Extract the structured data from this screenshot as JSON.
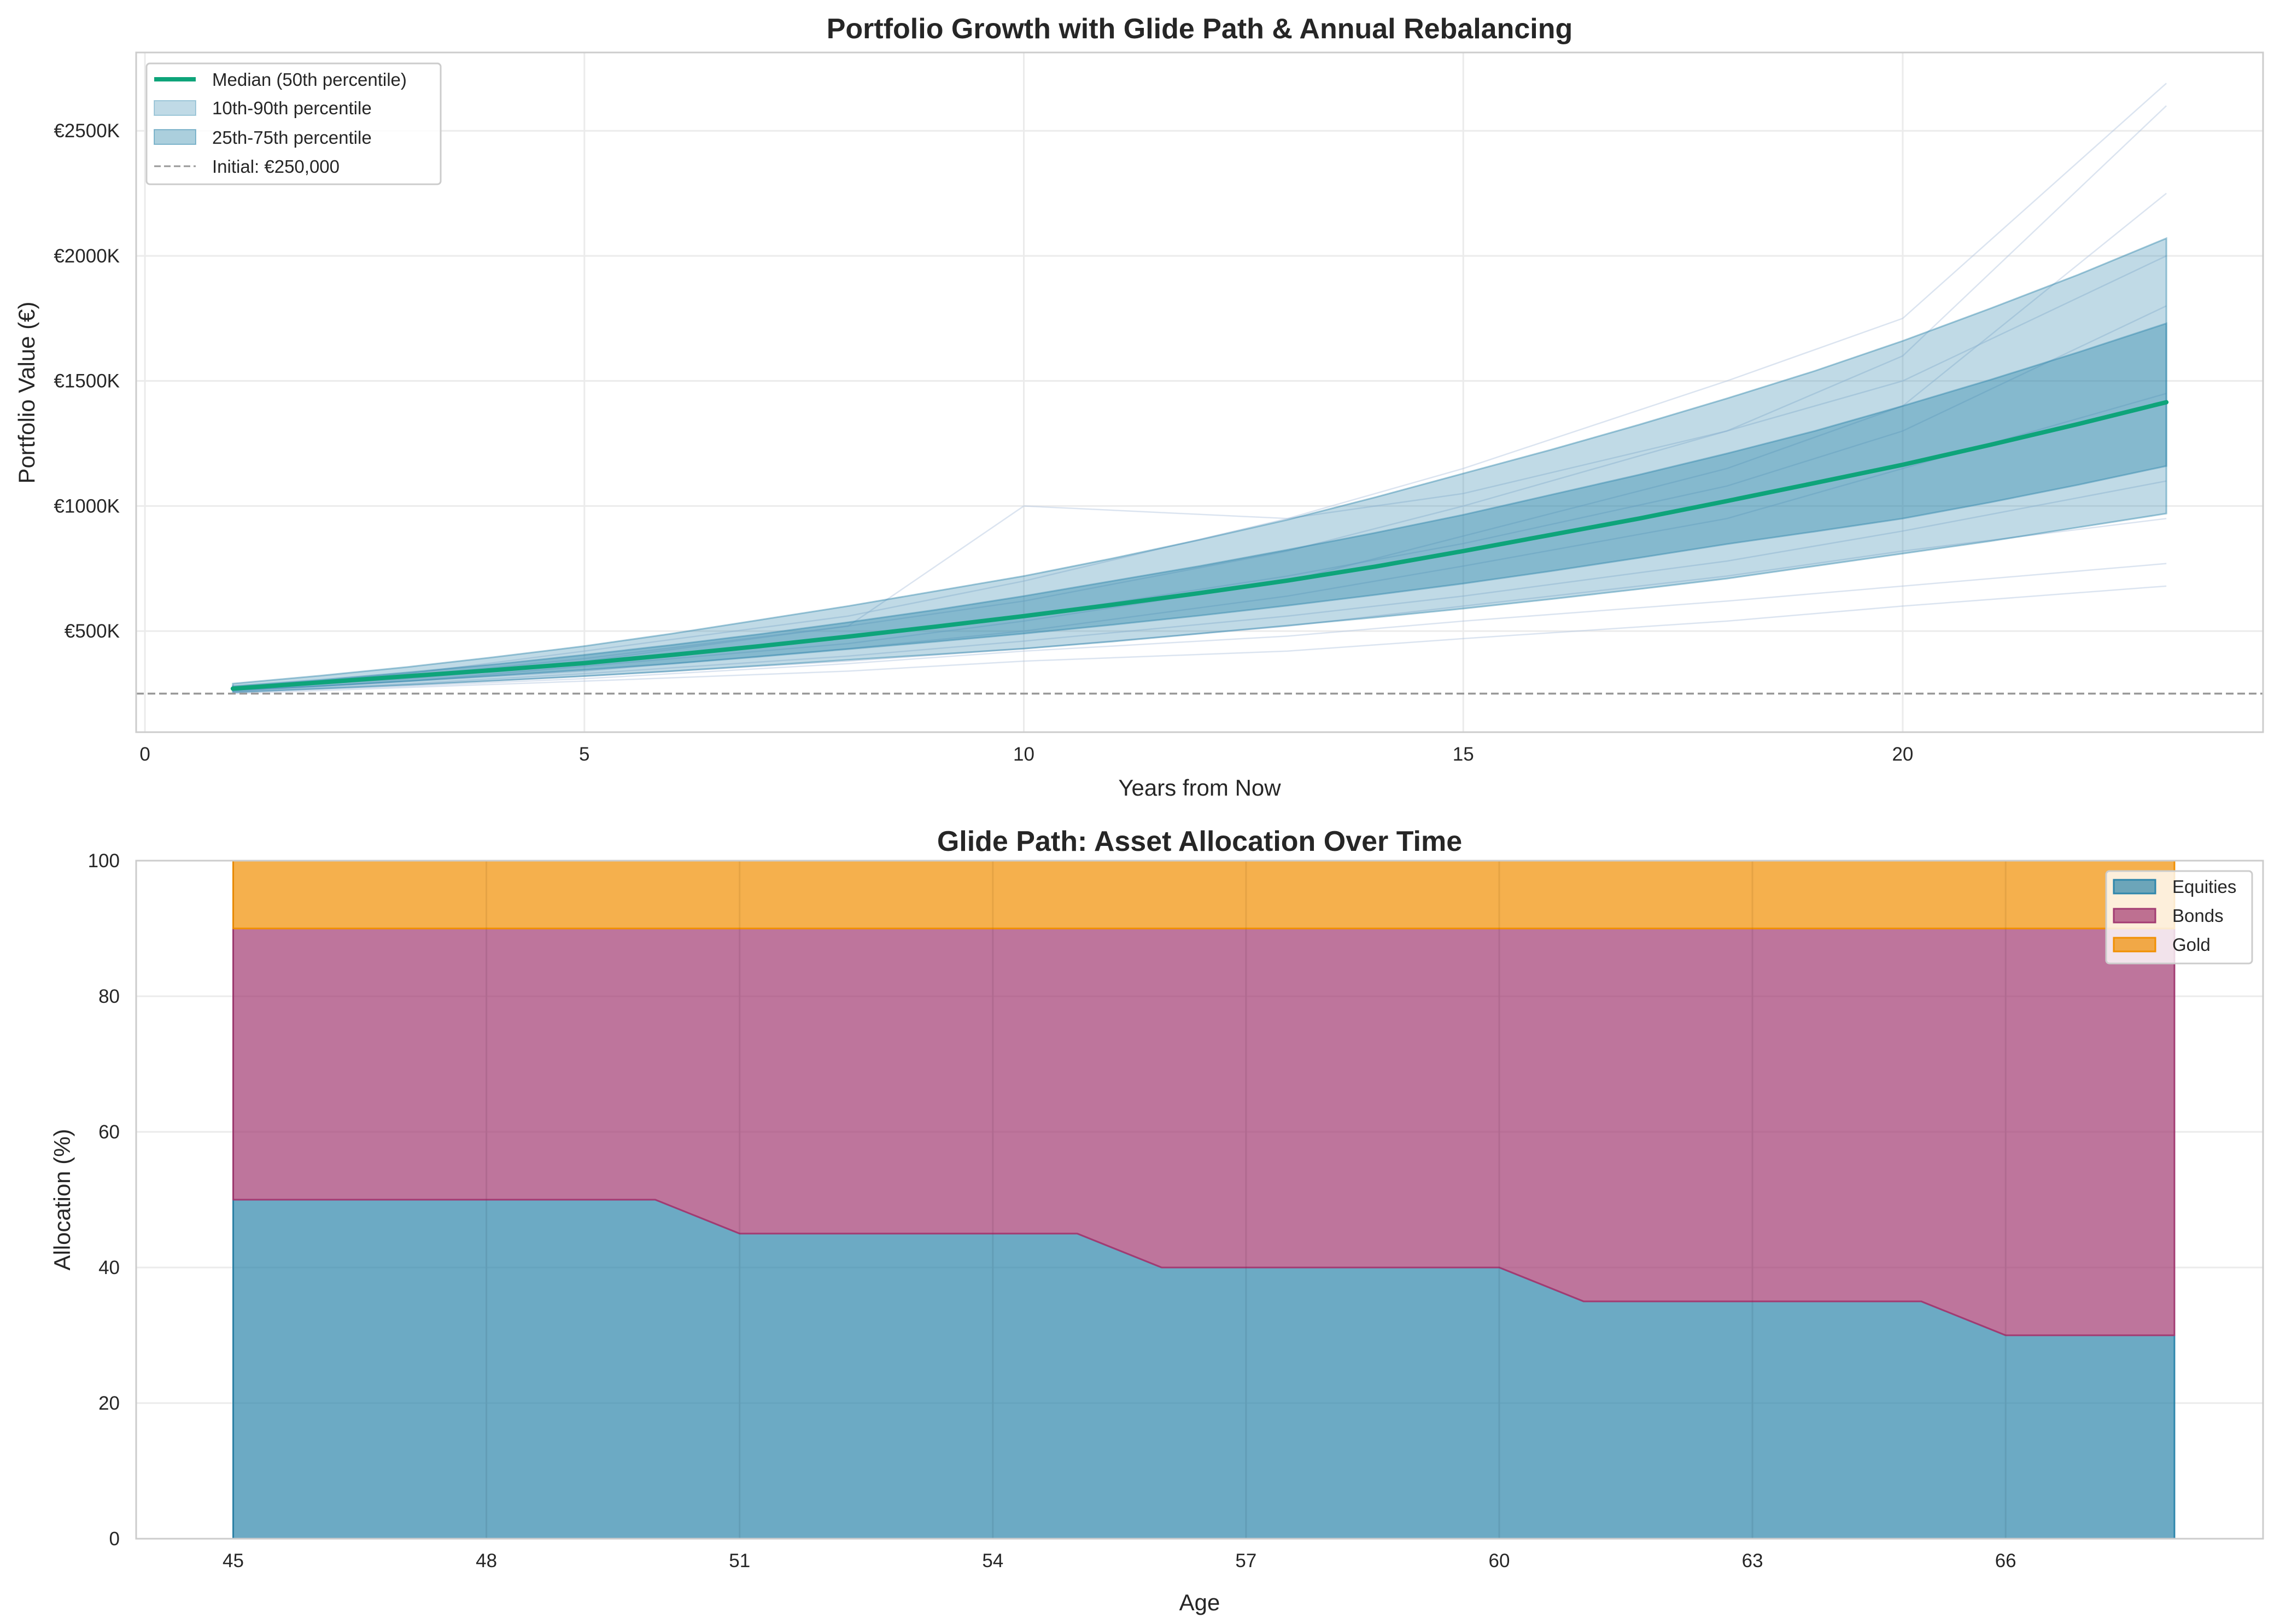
{
  "chart_data": [
    {
      "type": "area",
      "title": "Portfolio Growth with Glide Path & Annual Rebalancing",
      "xlabel": "Years from Now",
      "ylabel": "Portfolio Value (€)",
      "xlim": [
        -0.1,
        24.1
      ],
      "ylim": [
        96,
        2813
      ],
      "y_unit": "€K",
      "grid": true,
      "legend_position": "top-left",
      "x_ticks": [
        0,
        5,
        10,
        15,
        20
      ],
      "x_tick_labels": [
        "0",
        "5",
        "10",
        "15",
        "20"
      ],
      "y_ticks": [
        500,
        1000,
        1500,
        2000,
        2500
      ],
      "y_tick_labels": [
        "€500K",
        "€1000K",
        "€1500K",
        "€2000K",
        "€2500K"
      ],
      "years": [
        1,
        2,
        3,
        4,
        5,
        6,
        7,
        8,
        9,
        10,
        11,
        12,
        13,
        14,
        15,
        16,
        17,
        18,
        19,
        20,
        21,
        22,
        23
      ],
      "median": {
        "name": "Median (50th percentile)",
        "color": "#0ea47a",
        "values": [
          270,
          295,
          320,
          345,
          372,
          405,
          440,
          478,
          518,
          560,
          605,
          652,
          702,
          758,
          820,
          885,
          950,
          1020,
          1092,
          1165,
          1245,
          1328,
          1415
        ]
      },
      "band_10_90": {
        "name": "10th-90th percentile",
        "color": "#2e86ab",
        "lower": [
          255,
          270,
          285,
          302,
          320,
          340,
          362,
          385,
          407,
          430,
          458,
          490,
          522,
          555,
          590,
          628,
          668,
          710,
          760,
          810,
          860,
          915,
          970
        ],
        "upper": [
          290,
          322,
          357,
          397,
          440,
          490,
          545,
          600,
          660,
          720,
          790,
          865,
          945,
          1035,
          1130,
          1225,
          1325,
          1430,
          1540,
          1660,
          1790,
          1925,
          2070
        ]
      },
      "band_25_75": {
        "name": "25th-75th percentile",
        "color": "#2e86ab",
        "lower": [
          262,
          280,
          300,
          322,
          345,
          370,
          398,
          428,
          458,
          490,
          525,
          562,
          602,
          645,
          690,
          740,
          793,
          848,
          898,
          950,
          1015,
          1085,
          1160
        ],
        "upper": [
          280,
          305,
          335,
          368,
          405,
          445,
          488,
          535,
          585,
          640,
          700,
          760,
          825,
          893,
          965,
          1045,
          1125,
          1210,
          1300,
          1400,
          1505,
          1615,
          1730
        ]
      },
      "initial_line": {
        "name": "Initial: €250,000",
        "value": 250,
        "color": "#999999"
      },
      "sample_paths": {
        "color": "#b0c4de",
        "years": [
          1,
          3,
          5,
          8,
          10,
          13,
          15,
          18,
          20,
          23
        ],
        "paths": [
          [
            270,
            330,
            420,
            560,
            700,
            950,
            1150,
            1500,
            1750,
            2690
          ],
          [
            265,
            320,
            380,
            520,
            620,
            820,
            1000,
            1300,
            1600,
            2600
          ],
          [
            260,
            300,
            340,
            430,
            500,
            640,
            760,
            950,
            1150,
            1450
          ],
          [
            255,
            285,
            320,
            380,
            430,
            520,
            600,
            720,
            820,
            950
          ],
          [
            250,
            275,
            300,
            340,
            380,
            420,
            470,
            540,
            600,
            680
          ],
          [
            268,
            310,
            370,
            480,
            560,
            720,
            850,
            1080,
            1300,
            1800
          ],
          [
            262,
            300,
            360,
            450,
            540,
            700,
            880,
            1150,
            1400,
            2250
          ],
          [
            258,
            290,
            330,
            400,
            460,
            560,
            640,
            780,
            900,
            1100
          ],
          [
            272,
            320,
            390,
            520,
            1000,
            950,
            1050,
            1300,
            1500,
            2000
          ],
          [
            256,
            280,
            310,
            370,
            420,
            480,
            540,
            620,
            680,
            770
          ]
        ]
      }
    },
    {
      "type": "area",
      "stacked": true,
      "title": "Glide Path: Asset Allocation Over Time",
      "xlabel": "Age",
      "ylabel": "Allocation (%)",
      "xlim": [
        43.85,
        69.05
      ],
      "ylim": [
        0,
        100
      ],
      "grid": true,
      "legend_position": "top-right",
      "x_ticks": [
        45,
        48,
        51,
        54,
        57,
        60,
        63,
        66
      ],
      "x_tick_labels": [
        "45",
        "48",
        "51",
        "54",
        "57",
        "60",
        "63",
        "66"
      ],
      "y_ticks": [
        0,
        20,
        40,
        60,
        80,
        100
      ],
      "y_tick_labels": [
        "0",
        "20",
        "40",
        "60",
        "80",
        "100"
      ],
      "x": [
        45,
        46,
        47,
        48,
        49,
        50,
        51,
        52,
        53,
        54,
        55,
        56,
        57,
        58,
        59,
        60,
        61,
        62,
        63,
        64,
        65,
        66,
        67,
        68
      ],
      "series": [
        {
          "name": "Equities",
          "color": "#2e86ab",
          "values": [
            50,
            50,
            50,
            50,
            50,
            50,
            45,
            45,
            45,
            45,
            45,
            40,
            40,
            40,
            40,
            40,
            35,
            35,
            35,
            35,
            35,
            30,
            30,
            30
          ]
        },
        {
          "name": "Bonds",
          "color": "#a23b72",
          "values": [
            40,
            40,
            40,
            40,
            40,
            40,
            45,
            45,
            45,
            45,
            45,
            50,
            50,
            50,
            50,
            50,
            55,
            55,
            55,
            55,
            55,
            60,
            60,
            60
          ]
        },
        {
          "name": "Gold",
          "color": "#f18f01",
          "values": [
            10,
            10,
            10,
            10,
            10,
            10,
            10,
            10,
            10,
            10,
            10,
            10,
            10,
            10,
            10,
            10,
            10,
            10,
            10,
            10,
            10,
            10,
            10,
            10
          ]
        }
      ]
    }
  ]
}
